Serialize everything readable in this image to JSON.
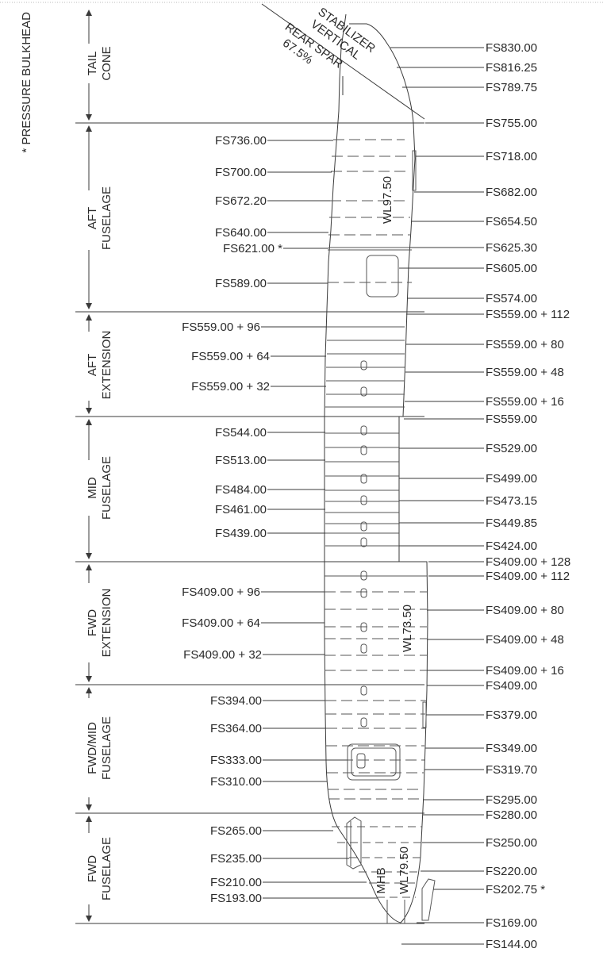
{
  "pressure_bulkhead_note": "* PRESSURE BULKHEAD",
  "sections": [
    {
      "id": "tail-cone",
      "line1": "TAIL",
      "line2": "CONE"
    },
    {
      "id": "aft-fuselage",
      "line1": "AFT",
      "line2": "FUSELAGE"
    },
    {
      "id": "aft-extension",
      "line1": "AFT",
      "line2": "EXTENSION"
    },
    {
      "id": "mid-fuselage",
      "line1": "MID",
      "line2": "FUSELAGE"
    },
    {
      "id": "fwd-extension",
      "line1": "FWD",
      "line2": "EXTENSION"
    },
    {
      "id": "fwdmid-fuselage",
      "line1": "FWD/MID",
      "line2": "FUSELAGE"
    },
    {
      "id": "fwd-fuselage",
      "line1": "FWD",
      "line2": "FUSELAGE"
    }
  ],
  "stabilizer_labels": {
    "stabilizer": "STABILIZER",
    "vertical": "VERTICAL",
    "rear_spar": "REAR SPAR",
    "percent": "67.5%"
  },
  "waterlines": {
    "wl97": "WL97.50",
    "wl73": "WL73.50",
    "wl79": "WL79.50",
    "mhb": "MHB"
  },
  "left_labels": [
    "FS736.00",
    "FS700.00",
    "FS672.20",
    "FS640.00",
    "FS621.00 *",
    "FS589.00",
    "FS559.00 + 96",
    "FS559.00 + 64",
    "FS559.00 + 32",
    "FS544.00",
    "FS513.00",
    "FS484.00",
    "FS461.00",
    "FS439.00",
    "FS409.00 + 96",
    "FS409.00 + 64",
    "FS409.00 + 32",
    "FS394.00",
    "FS364.00",
    "FS333.00",
    "FS310.00",
    "FS265.00",
    "FS235.00",
    "FS210.00",
    "FS193.00"
  ],
  "right_labels": [
    "FS830.00",
    "FS816.25",
    "FS789.75",
    "FS755.00",
    "FS718.00",
    "FS682.00",
    "FS654.50",
    "FS625.30",
    "FS605.00",
    "FS574.00",
    "FS559.00 + 112",
    "FS559.00 + 80",
    "FS559.00 + 48",
    "FS559.00 + 16",
    "FS559.00",
    "FS529.00",
    "FS499.00",
    "FS473.15",
    "FS449.85",
    "FS424.00",
    "FS409.00 + 128",
    "FS409.00 + 112",
    "FS409.00 + 80",
    "FS409.00 + 48",
    "FS409.00 + 16",
    "FS409.00",
    "FS379.00",
    "FS349.00",
    "FS319.70",
    "FS295.00",
    "FS280.00",
    "FS250.00",
    "FS220.00",
    "FS202.75 *",
    "FS169.00",
    "FS144.00"
  ]
}
